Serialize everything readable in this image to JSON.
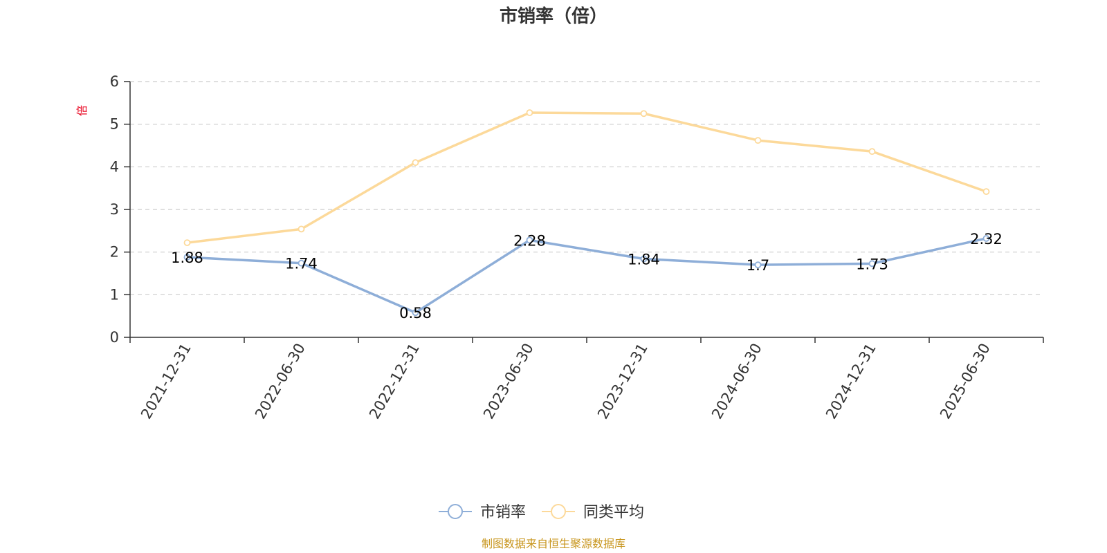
{
  "chart_data": {
    "type": "line",
    "title": "市销率（倍）",
    "ylabel": "倍",
    "ylim": [
      0,
      6
    ],
    "yticks": [
      "0",
      "1",
      "2",
      "3",
      "4",
      "5",
      "6"
    ],
    "grid": true,
    "legend_position": "bottom",
    "categories": [
      "2021-12-31",
      "2022-06-30",
      "2022-12-31",
      "2023-06-30",
      "2023-12-31",
      "2024-06-30",
      "2024-12-31",
      "2025-06-30"
    ],
    "series": [
      {
        "name": "市销率",
        "color": "#8eaed8",
        "values": [
          1.88,
          1.74,
          0.58,
          2.28,
          1.84,
          1.7,
          1.73,
          2.32
        ],
        "labels": [
          "1.88",
          "1.74",
          "0.58",
          "2.28",
          "1.84",
          "1.7",
          "1.73",
          "2.32"
        ],
        "show_labels": true
      },
      {
        "name": "同类平均",
        "color": "#fcd99a",
        "values": [
          2.22,
          2.54,
          4.1,
          5.27,
          5.25,
          4.62,
          4.36,
          3.42
        ],
        "show_labels": false
      }
    ]
  },
  "source_note": "制图数据来自恒生聚源数据库"
}
